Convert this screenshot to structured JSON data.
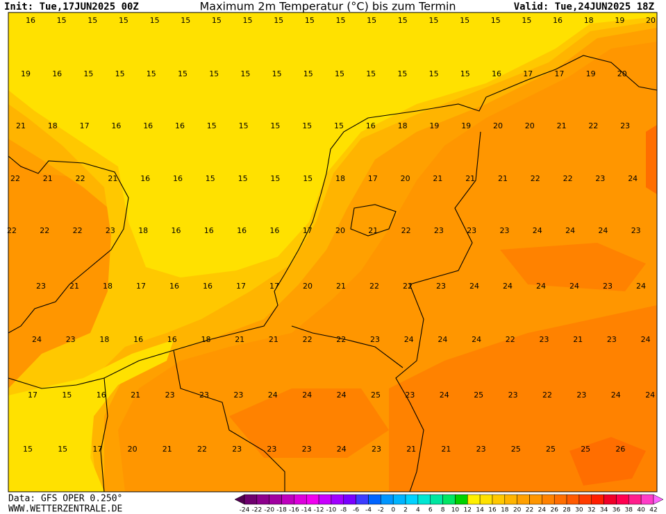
{
  "header": {
    "init": "Init: Tue,17JUN2025 00Z",
    "title": "Maximum 2m Temperatur (°C) bis zum Termin",
    "valid": "Valid: Tue,24JUN2025 18Z"
  },
  "map": {
    "rows": [
      [
        16,
        15,
        15,
        15,
        15,
        15,
        15,
        15,
        15,
        15,
        15,
        15,
        15,
        15,
        15,
        15,
        15,
        16,
        18,
        19,
        20
      ],
      [
        19,
        16,
        15,
        15,
        15,
        15,
        15,
        15,
        15,
        15,
        15,
        15,
        15,
        15,
        15,
        16,
        17,
        17,
        19,
        20
      ],
      [
        21,
        18,
        17,
        16,
        16,
        16,
        15,
        15,
        15,
        15,
        15,
        16,
        18,
        19,
        19,
        20,
        20,
        21,
        22,
        23
      ],
      [
        22,
        21,
        22,
        21,
        16,
        16,
        15,
        15,
        15,
        15,
        18,
        17,
        20,
        21,
        21,
        21,
        22,
        22,
        23,
        24
      ],
      [
        22,
        22,
        22,
        23,
        18,
        16,
        16,
        16,
        16,
        17,
        20,
        21,
        22,
        23,
        23,
        23,
        24,
        24,
        24,
        23
      ],
      [
        23,
        21,
        18,
        17,
        16,
        16,
        17,
        17,
        20,
        21,
        22,
        22,
        23,
        24,
        24,
        24,
        24,
        23,
        24
      ],
      [
        24,
        23,
        18,
        16,
        16,
        18,
        21,
        21,
        22,
        22,
        23,
        24,
        24,
        24,
        22,
        23,
        21,
        23,
        24
      ],
      [
        17,
        15,
        16,
        21,
        23,
        23,
        23,
        24,
        24,
        24,
        25,
        23,
        24,
        25,
        23,
        22,
        23,
        24,
        24
      ],
      [
        15,
        15,
        17,
        20,
        21,
        22,
        23,
        23,
        23,
        24,
        23,
        21,
        21,
        23,
        25,
        25,
        25,
        26
      ]
    ]
  },
  "colorbar": {
    "labels": [
      -24,
      -22,
      -20,
      -18,
      -16,
      -14,
      -12,
      -10,
      -8,
      -6,
      -4,
      -2,
      0,
      2,
      4,
      6,
      8,
      10,
      12,
      14,
      16,
      18,
      20,
      22,
      24,
      26,
      28,
      30,
      32,
      34,
      36,
      38,
      40,
      42
    ],
    "colors": [
      "#500050",
      "#6e006e",
      "#8c008c",
      "#a000a0",
      "#be00be",
      "#dc00dc",
      "#f000f0",
      "#c800ff",
      "#a000ff",
      "#7800ff",
      "#3c3cff",
      "#0064ff",
      "#0096ff",
      "#00b4ff",
      "#00d2ff",
      "#00e6d2",
      "#00e6a0",
      "#00e664",
      "#00d200",
      "#fff000",
      "#ffe100",
      "#ffc800",
      "#ffb400",
      "#ffa000",
      "#ff9600",
      "#ff8200",
      "#ff6e00",
      "#ff5a00",
      "#ff3c00",
      "#ff1e00",
      "#f00028",
      "#ff0050",
      "#ff1e8c",
      "#ff3cc8",
      "#ff64ff"
    ]
  },
  "footer": {
    "data": "Data: GFS OPER 0.250°",
    "site": "WWW.WETTERZENTRALE.DE"
  }
}
